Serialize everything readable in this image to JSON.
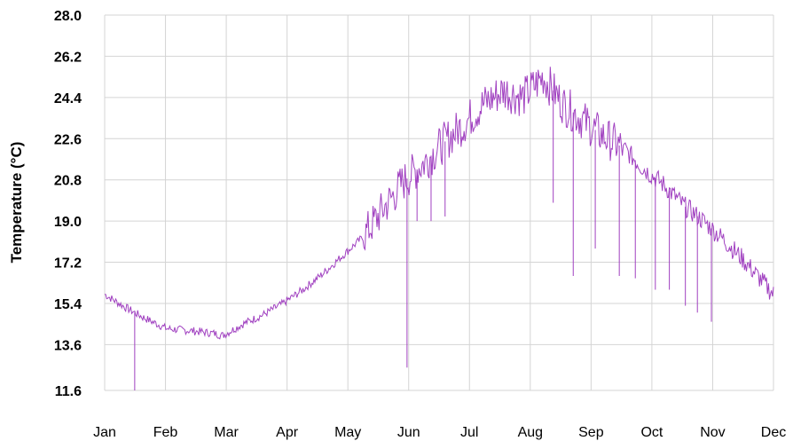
{
  "chart_data": {
    "type": "line",
    "title": "",
    "xlabel": "",
    "ylabel": "Temperature (°C)",
    "ylim": [
      11.6,
      28.0
    ],
    "y_ticks": [
      "28.0",
      "26.2",
      "24.4",
      "22.6",
      "20.8",
      "19.0",
      "17.2",
      "15.4",
      "13.6",
      "11.6"
    ],
    "x_ticks": [
      "Jan",
      "Feb",
      "Mar",
      "Apr",
      "May",
      "Jun",
      "Jul",
      "Aug",
      "Sep",
      "Oct",
      "Nov",
      "Dec"
    ],
    "grid": true,
    "series_color": "#A040C0",
    "series": [
      {
        "name": "",
        "x": [
          1,
          10,
          20,
          32,
          45,
          55,
          60,
          70,
          80,
          90,
          100,
          110,
          120,
          130,
          140,
          150,
          160,
          170,
          180,
          190,
          200,
          210,
          220,
          230,
          240,
          250,
          260,
          270,
          280,
          290,
          300,
          310,
          320,
          335
        ],
        "y": [
          15.8,
          15.3,
          14.8,
          14.3,
          14.2,
          14.1,
          14.0,
          14.5,
          14.9,
          15.4,
          16.0,
          16.7,
          17.5,
          18.3,
          19.5,
          20.7,
          21.5,
          22.4,
          23.2,
          24.1,
          24.7,
          24.4,
          25.3,
          24.1,
          23.4,
          22.7,
          22.2,
          21.3,
          20.6,
          19.7,
          19.0,
          18.2,
          17.3,
          15.8
        ]
      }
    ],
    "spikes": [
      {
        "x": 16,
        "y": 11.6
      },
      {
        "x": 152,
        "y": 12.6
      },
      {
        "x": 157,
        "y": 19.0
      },
      {
        "x": 164,
        "y": 19.0
      },
      {
        "x": 171,
        "y": 19.2
      },
      {
        "x": 225,
        "y": 19.8
      },
      {
        "x": 235,
        "y": 16.6
      },
      {
        "x": 246,
        "y": 17.8
      },
      {
        "x": 258,
        "y": 16.6
      },
      {
        "x": 266,
        "y": 16.5
      },
      {
        "x": 276,
        "y": 16.0
      },
      {
        "x": 283,
        "y": 16.0
      },
      {
        "x": 291,
        "y": 15.3
      },
      {
        "x": 297,
        "y": 15.0
      },
      {
        "x": 304,
        "y": 14.6
      }
    ]
  }
}
